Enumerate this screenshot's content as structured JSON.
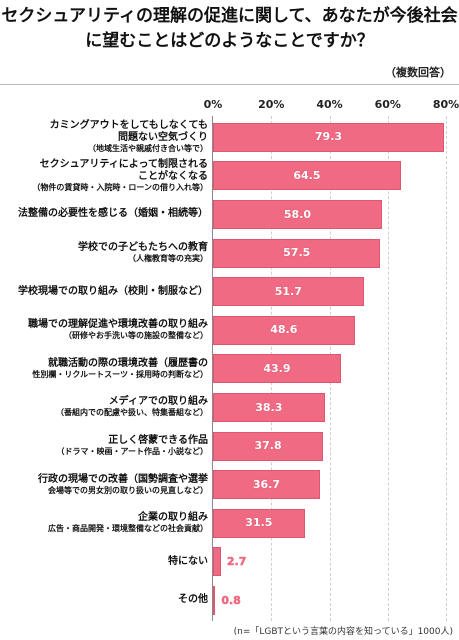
{
  "title": "セクシュアリティの理解の促進に関して、あなたが今後社会に望むことはどのようなことですか？",
  "note": "（複数回答）",
  "footnote": "(n=「LGBTという言葉の内容を知っている」1000人)",
  "chart_data": {
    "type": "bar",
    "orientation": "horizontal",
    "title": "セクシュアリティの理解の促進に関して、あなたが今後社会に望むことはどのようなことですか？",
    "xlim": [
      0,
      80
    ],
    "ticks": [
      "0%",
      "20%",
      "40%",
      "60%",
      "80%"
    ],
    "tick_values": [
      0,
      20,
      40,
      60,
      80
    ],
    "grid": true,
    "categories": [
      {
        "main": [
          "カミングアウトをしてもしなくても",
          "問題ない空気づくり"
        ],
        "sub": [
          "（地域生活や親戚付き合い等で）"
        ]
      },
      {
        "main": [
          "セクシュアリティによって制限される",
          "ことがなくなる"
        ],
        "sub": [
          "（物件の賃貸時・入院時・ローンの借り入れ等）"
        ]
      },
      {
        "main": [
          "法整備の必要性を感じる（婚姻・相続等）"
        ],
        "sub": []
      },
      {
        "main": [
          "学校での子どもたちへの教育"
        ],
        "sub": [
          "（人権教育等の充実）"
        ]
      },
      {
        "main": [
          "学校現場での取り組み（校則・制服など）"
        ],
        "sub": []
      },
      {
        "main": [
          "職場での理解促進や環境改善の取り組み"
        ],
        "sub": [
          "（研修やお手洗い等の施設の整備など）"
        ]
      },
      {
        "main": [
          "就職活動の際の環境改善（履歴書の"
        ],
        "sub": [
          "性別欄・リクルートスーツ・採用時の判断など）"
        ]
      },
      {
        "main": [
          "メディアでの取り組み"
        ],
        "sub": [
          "（番組内での配慮や扱い、特集番組など）"
        ]
      },
      {
        "main": [
          "正しく啓蒙できる作品"
        ],
        "sub": [
          "（ドラマ・映画・アート作品・小説など）"
        ]
      },
      {
        "main": [
          "行政の現場での改善（国勢調査や選挙"
        ],
        "sub": [
          "会場等での男女別の取り扱いの見直しなど）"
        ]
      },
      {
        "main": [
          "企業の取り組み"
        ],
        "sub": [
          "広告・商品開発・環境整備などの社会貢献）"
        ]
      },
      {
        "main": [
          "特にない"
        ],
        "sub": []
      },
      {
        "main": [
          "その他"
        ],
        "sub": []
      }
    ],
    "values": [
      79.3,
      64.5,
      58.0,
      57.5,
      51.7,
      48.6,
      43.9,
      38.3,
      37.8,
      36.7,
      31.5,
      2.7,
      0.8
    ],
    "value_labels": [
      "79.3",
      "64.5",
      "58.0",
      "57.5",
      "51.7",
      "48.6",
      "43.9",
      "38.3",
      "37.8",
      "36.7",
      "31.5",
      "2.7",
      "0.8"
    ],
    "colors": {
      "bar": "#ef6a82",
      "bar_border": "#e05570"
    }
  }
}
